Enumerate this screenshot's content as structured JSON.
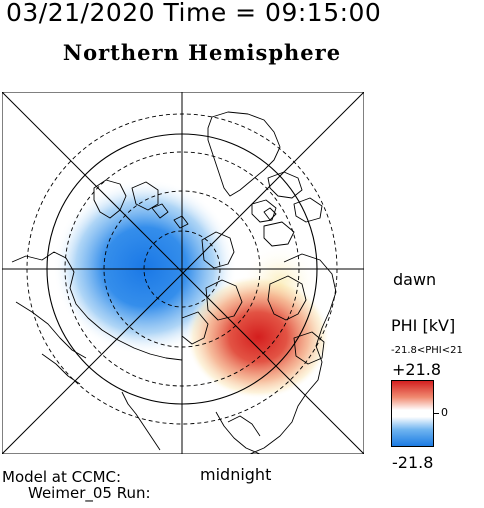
{
  "header": {
    "timestamp": "03/21/2020 Time = 09:15:00",
    "hemisphere_title": "Northern Hemisphere"
  },
  "map": {
    "projection": "polar",
    "dawn_label": "dawn",
    "midnight_label": "midnight"
  },
  "colorbar": {
    "title": "PHI [kV]",
    "range_text": "-21.8<PHI<21",
    "max_label": "+21.8",
    "zero_label": "0",
    "min_label": "-21.8",
    "colors": {
      "positive": "#d42020",
      "neutral": "#ffffff",
      "negative": "#1c7be3"
    }
  },
  "footer": {
    "model_line1": "Model at CCMC:",
    "model_line2": "Weimer_05 Run:"
  }
}
